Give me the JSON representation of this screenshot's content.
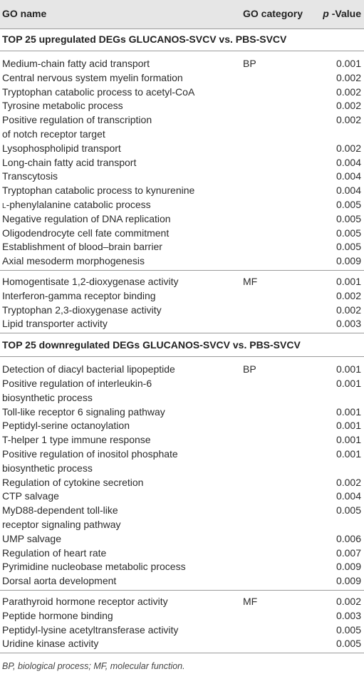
{
  "header": {
    "col_name": "GO name",
    "col_category": "GO category",
    "col_p_italic": "p",
    "col_p_rest": " -Value"
  },
  "sections": [
    {
      "title": "TOP 25 upregulated DEGs GLUCANOS-SVCV vs. PBS-SVCV",
      "groups": [
        {
          "category": "BP",
          "rows": [
            {
              "name": [
                "Medium-chain fatty acid transport"
              ],
              "p": "0.001"
            },
            {
              "name": [
                "Central nervous system myelin formation"
              ],
              "p": "0.002"
            },
            {
              "name": [
                "Tryptophan catabolic process to acetyl-CoA"
              ],
              "p": "0.002"
            },
            {
              "name": [
                "Tyrosine metabolic process"
              ],
              "p": "0.002"
            },
            {
              "name": [
                "Positive regulation of transcription",
                "of notch receptor target"
              ],
              "p": "0.002"
            },
            {
              "name": [
                "Lysophospholipid transport"
              ],
              "p": "0.002"
            },
            {
              "name": [
                "Long-chain fatty acid transport"
              ],
              "p": "0.004"
            },
            {
              "name": [
                "Transcytosis"
              ],
              "p": "0.004"
            },
            {
              "name": [
                "Tryptophan catabolic process to kynurenine"
              ],
              "p": "0.004"
            },
            {
              "name": [
                "L-phenylalanine catabolic process"
              ],
              "p": "0.005",
              "smallcap_prefix": "L",
              "rest": "-phenylalanine catabolic process"
            },
            {
              "name": [
                "Negative regulation of DNA replication"
              ],
              "p": "0.005"
            },
            {
              "name": [
                "Oligodendrocyte cell fate commitment"
              ],
              "p": "0.005"
            },
            {
              "name": [
                "Establishment of blood–brain barrier"
              ],
              "p": "0.005"
            },
            {
              "name": [
                "Axial mesoderm morphogenesis"
              ],
              "p": "0.009"
            }
          ]
        },
        {
          "category": "MF",
          "rows": [
            {
              "name": [
                "Homogentisate 1,2-dioxygenase activity"
              ],
              "p": "0.001"
            },
            {
              "name": [
                "Interferon-gamma receptor binding"
              ],
              "p": "0.002"
            },
            {
              "name": [
                "Tryptophan 2,3-dioxygenase activity"
              ],
              "p": "0.002"
            },
            {
              "name": [
                "Lipid transporter activity"
              ],
              "p": "0.003"
            }
          ]
        }
      ]
    },
    {
      "title": "TOP 25 downregulated DEGs GLUCANOS-SVCV vs. PBS-SVCV",
      "groups": [
        {
          "category": "BP",
          "rows": [
            {
              "name": [
                "Detection of diacyl bacterial lipopeptide"
              ],
              "p": "0.001"
            },
            {
              "name": [
                "Positive regulation of interleukin-6",
                "biosynthetic process"
              ],
              "p": "0.001"
            },
            {
              "name": [
                "Toll-like receptor 6 signaling pathway"
              ],
              "p": "0.001"
            },
            {
              "name": [
                "Peptidyl-serine octanoylation"
              ],
              "p": "0.001"
            },
            {
              "name": [
                "T-helper 1 type immune response"
              ],
              "p": "0.001"
            },
            {
              "name": [
                "Positive regulation of inositol phosphate",
                "biosynthetic process"
              ],
              "p": "0.001"
            },
            {
              "name": [
                "Regulation of cytokine secretion"
              ],
              "p": "0.002"
            },
            {
              "name": [
                "CTP salvage"
              ],
              "p": "0.004"
            },
            {
              "name": [
                "MyD88-dependent toll-like",
                "receptor signaling pathway"
              ],
              "p": "0.005"
            },
            {
              "name": [
                "UMP salvage"
              ],
              "p": "0.006"
            },
            {
              "name": [
                "Regulation of heart rate"
              ],
              "p": "0.007"
            },
            {
              "name": [
                "Pyrimidine nucleobase metabolic process"
              ],
              "p": "0.009"
            },
            {
              "name": [
                "Dorsal aorta development"
              ],
              "p": "0.009"
            }
          ]
        },
        {
          "category": "MF",
          "rows": [
            {
              "name": [
                "Parathyroid hormone receptor activity"
              ],
              "p": "0.002"
            },
            {
              "name": [
                "Peptide hormone binding"
              ],
              "p": "0.003"
            },
            {
              "name": [
                "Peptidyl-lysine acetyltransferase activity"
              ],
              "p": "0.005"
            },
            {
              "name": [
                "Uridine kinase activity"
              ],
              "p": "0.005"
            }
          ]
        }
      ]
    }
  ],
  "footnote": "BP, biological process; MF, molecular function."
}
